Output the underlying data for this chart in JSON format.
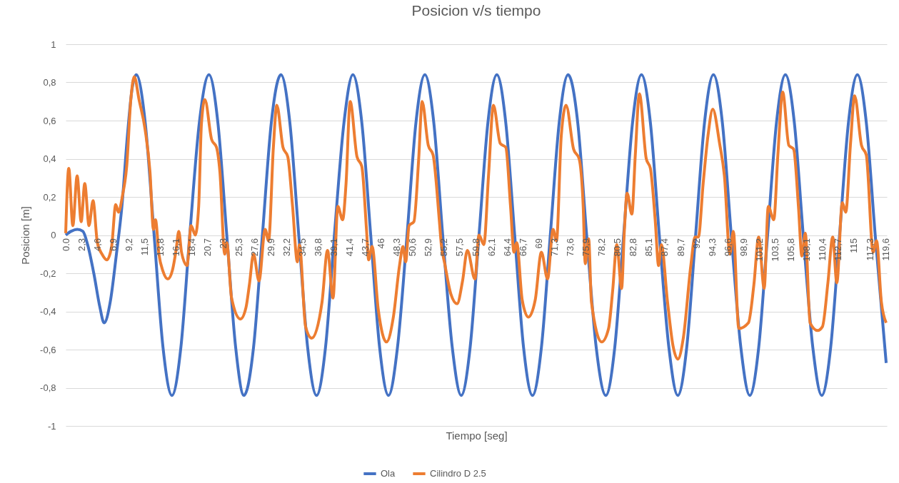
{
  "chart_data": {
    "type": "line",
    "title": "Posicion v/s tiempo",
    "xlabel": "Tiempo [seg]",
    "ylabel": "Posicion [m]",
    "xlim": [
      0,
      119.8
    ],
    "ylim": [
      -1,
      1
    ],
    "xticks": [
      {
        "value": 0,
        "label": "0.0"
      },
      {
        "value": 2.3,
        "label": "2,3"
      },
      {
        "value": 4.6,
        "label": "4,6"
      },
      {
        "value": 6.9,
        "label": "6,9"
      },
      {
        "value": 9.2,
        "label": "9,2"
      },
      {
        "value": 11.5,
        "label": "11,5"
      },
      {
        "value": 13.8,
        "label": "13,8"
      },
      {
        "value": 16.1,
        "label": "16,1"
      },
      {
        "value": 18.4,
        "label": "18,4"
      },
      {
        "value": 20.7,
        "label": "20,7"
      },
      23,
      {
        "value": 25.3,
        "label": "25,3"
      },
      {
        "value": 27.6,
        "label": "27,6"
      },
      {
        "value": 29.9,
        "label": "29,9"
      },
      {
        "value": 32.2,
        "label": "32,2"
      },
      {
        "value": 34.5,
        "label": "34,5"
      },
      {
        "value": 36.8,
        "label": "36,8"
      },
      {
        "value": 39.1,
        "label": "39,1"
      },
      {
        "value": 41.4,
        "label": "41,4"
      },
      {
        "value": 43.7,
        "label": "43,7"
      },
      46,
      {
        "value": 48.3,
        "label": "48,3"
      },
      {
        "value": 50.6,
        "label": "50,6"
      },
      {
        "value": 52.9,
        "label": "52,9"
      },
      {
        "value": 55.2,
        "label": "55,2"
      },
      {
        "value": 57.5,
        "label": "57,5"
      },
      {
        "value": 59.8,
        "label": "59,8"
      },
      {
        "value": 62.1,
        "label": "62,1"
      },
      {
        "value": 64.4,
        "label": "64,4"
      },
      {
        "value": 66.7,
        "label": "66,7"
      },
      69,
      {
        "value": 71.3,
        "label": "71,3"
      },
      {
        "value": 73.6,
        "label": "73,6"
      },
      {
        "value": 75.9,
        "label": "75,9"
      },
      {
        "value": 78.2,
        "label": "78,2"
      },
      {
        "value": 80.5,
        "label": "80,5"
      },
      {
        "value": 82.8,
        "label": "82,8"
      },
      {
        "value": 85.1,
        "label": "85,1"
      },
      {
        "value": 87.4,
        "label": "87,4"
      },
      {
        "value": 89.7,
        "label": "89,7"
      },
      92,
      {
        "value": 94.3,
        "label": "94,3"
      },
      {
        "value": 96.6,
        "label": "96,6"
      },
      {
        "value": 98.9,
        "label": "98,9"
      },
      {
        "value": 101.2,
        "label": "101,2"
      },
      {
        "value": 103.5,
        "label": "103,5"
      },
      {
        "value": 105.8,
        "label": "105,8"
      },
      {
        "value": 108.1,
        "label": "108,1"
      },
      {
        "value": 110.4,
        "label": "110,4"
      },
      {
        "value": 112.7,
        "label": "112,7"
      },
      115,
      {
        "value": 117.3,
        "label": "117,3"
      },
      {
        "value": 119.6,
        "label": "119,6"
      }
    ],
    "yticks": [
      -1,
      {
        "value": -0.8,
        "label": "-0,8"
      },
      {
        "value": -0.6,
        "label": "-0,6"
      },
      {
        "value": -0.4,
        "label": "-0,4"
      },
      {
        "value": -0.2,
        "label": "-0,2"
      },
      0,
      {
        "value": 0.2,
        "label": "0,2"
      },
      {
        "value": 0.4,
        "label": "0,4"
      },
      {
        "value": 0.6,
        "label": "0,6"
      },
      {
        "value": 0.8,
        "label": "0,8"
      },
      1
    ],
    "grid": "y",
    "legend": "bottom",
    "series": [
      {
        "name": "Ola",
        "color": "#4472c4",
        "x": [
          0,
          0.8,
          1.7,
          2.5,
          3.2,
          4.1,
          5.0,
          5.6,
          6.5,
          7.4,
          8.2,
          9.0,
          9.7,
          10.3,
          11.6,
          12.9,
          14.2,
          15.5,
          16.8,
          18.1,
          19.5,
          20.9,
          22.2,
          23.5,
          24.8,
          26.0,
          27.4,
          28.7,
          30.0,
          31.4,
          32.7,
          34.0,
          35.3,
          36.6,
          37.9,
          39.2,
          40.6,
          41.9,
          43.2,
          44.5,
          45.8,
          47.1,
          48.4,
          49.8,
          51.1,
          52.4,
          53.7,
          55.0,
          56.4,
          57.7,
          59.0,
          60.3,
          61.6,
          62.9,
          64.2,
          65.5,
          66.8,
          68.1,
          69.4,
          70.7,
          72.0,
          73.3,
          74.7,
          76.0,
          77.4,
          78.8,
          80.1,
          81.4,
          82.7,
          84.0,
          85.3,
          86.6,
          88.0,
          89.3,
          90.6,
          91.9,
          93.2,
          94.5,
          95.8,
          97.1,
          98.5,
          99.8,
          101.1,
          102.4,
          103.7,
          105.0,
          106.3,
          107.6,
          109.0,
          110.3,
          111.6,
          112.9,
          114.2,
          115.5,
          116.8,
          118.1,
          119.7
        ],
        "values": [
          0,
          0.02,
          0.03,
          0.02,
          -0.05,
          -0.2,
          -0.38,
          -0.46,
          -0.35,
          -0.1,
          0.15,
          0.52,
          0.77,
          0.84,
          0.59,
          0,
          -0.59,
          -0.84,
          -0.59,
          0,
          0.59,
          0.84,
          0.59,
          0,
          -0.59,
          -0.84,
          -0.59,
          0,
          0.59,
          0.84,
          0.59,
          0,
          -0.59,
          -0.84,
          -0.59,
          0,
          0.59,
          0.84,
          0.59,
          0,
          -0.59,
          -0.84,
          -0.59,
          0,
          0.59,
          0.84,
          0.59,
          0,
          -0.59,
          -0.84,
          -0.59,
          0,
          0.59,
          0.84,
          0.59,
          0,
          -0.59,
          -0.84,
          -0.59,
          0,
          0.59,
          0.84,
          0.59,
          0,
          -0.59,
          -0.84,
          -0.59,
          0,
          0.59,
          0.84,
          0.59,
          0,
          -0.59,
          -0.84,
          -0.59,
          0,
          0.59,
          0.84,
          0.59,
          0,
          -0.59,
          -0.84,
          -0.59,
          0,
          0.59,
          0.84,
          0.59,
          0,
          -0.59,
          -0.84,
          -0.59,
          0,
          0.59,
          0.84,
          0.59,
          0,
          -0.67
        ]
      },
      {
        "name": "Cilindro D 2.5",
        "color": "#ed7d31",
        "x": [
          0,
          0.45,
          1.04,
          1.67,
          2.26,
          2.78,
          3.4,
          3.99,
          4.62,
          5.3,
          6.0,
          6.7,
          7.3,
          7.7,
          8.3,
          8.9,
          9.5,
          10.0,
          10.7,
          11.6,
          12.3,
          12.8,
          13.1,
          13.6,
          14.2,
          14.9,
          15.6,
          16.1,
          16.5,
          16.9,
          17.7,
          18.3,
          18.9,
          19.4,
          19.8,
          20.3,
          21.3,
          22.0,
          22.5,
          23.2,
          23.5,
          24.2,
          25.5,
          26.3,
          26.8,
          27.4,
          28.2,
          29.1,
          29.6,
          30.3,
          30.8,
          31.7,
          32.4,
          33.1,
          33.8,
          34.1,
          35.0,
          35.9,
          37.4,
          38.2,
          39.0,
          39.7,
          40.4,
          40.9,
          41.5,
          42.5,
          43.2,
          43.9,
          44.2,
          44.7,
          45.6,
          46.8,
          47.8,
          48.7,
          49.2,
          49.6,
          50.1,
          50.8,
          51.5,
          52.0,
          52.9,
          53.6,
          54.5,
          54.8,
          55.3,
          56.2,
          57.1,
          57.9,
          58.6,
          59.7,
          60.3,
          61.0,
          61.7,
          62.4,
          63.4,
          64.2,
          64.9,
          65.4,
          65.8,
          66.6,
          67.5,
          68.5,
          69.4,
          70.3,
          71.1,
          71.6,
          72.3,
          73.0,
          74.1,
          74.9,
          75.5,
          75.8,
          76.3,
          76.7,
          78.2,
          79.2,
          79.8,
          80.4,
          81.1,
          81.5,
          81.9,
          82.6,
          83.1,
          83.7,
          84.7,
          85.3,
          86.0,
          86.5,
          86.9,
          87.8,
          88.6,
          89.3,
          90.1,
          91.2,
          91.8,
          92.3,
          93.0,
          93.7,
          94.4,
          95.4,
          96.1,
          96.9,
          97.4,
          98.2,
          99.6,
          100.4,
          101.1,
          101.9,
          102.5,
          103.3,
          103.9,
          104.6,
          105.5,
          106.2,
          106.9,
          107.4,
          107.9,
          108.6,
          109.7,
          110.4,
          111.2,
          111.9,
          112.5,
          113.3,
          113.8,
          114.5,
          115.1,
          116.1,
          116.8,
          117.8,
          118.3,
          119.0,
          119.7
        ],
        "values": [
          0.01,
          0.35,
          0.05,
          0.31,
          0.07,
          0.27,
          0.05,
          0.18,
          -0.04,
          -0.1,
          -0.13,
          -0.06,
          0.16,
          0.12,
          0.21,
          0.36,
          0.71,
          0.83,
          0.71,
          0.55,
          0.33,
          0.03,
          0.08,
          -0.1,
          -0.19,
          -0.23,
          -0.18,
          -0.08,
          0.02,
          -0.09,
          -0.16,
          0.05,
          0,
          0.15,
          0.58,
          0.71,
          0.5,
          0.46,
          0.33,
          -0.1,
          -0.04,
          -0.33,
          -0.44,
          -0.38,
          -0.26,
          -0.1,
          -0.24,
          0.03,
          -0.03,
          0.46,
          0.68,
          0.46,
          0.41,
          0.15,
          -0.14,
          -0.05,
          -0.48,
          -0.54,
          -0.35,
          -0.08,
          -0.33,
          0.15,
          0.08,
          0.27,
          0.7,
          0.41,
          0.36,
          0.02,
          -0.13,
          -0.06,
          -0.39,
          -0.56,
          -0.43,
          -0.16,
          -0.06,
          -0.14,
          0.05,
          0.07,
          0.4,
          0.7,
          0.47,
          0.42,
          0.08,
          -0.05,
          -0.15,
          -0.31,
          -0.36,
          -0.24,
          -0.08,
          -0.23,
          0,
          -0.05,
          0.32,
          0.68,
          0.48,
          0.46,
          0.15,
          -0.09,
          -0.04,
          -0.34,
          -0.43,
          -0.34,
          -0.09,
          -0.23,
          0.03,
          -0.03,
          0.52,
          0.68,
          0.45,
          0.4,
          0.15,
          -0.15,
          -0.02,
          -0.35,
          -0.56,
          -0.49,
          -0.29,
          -0.05,
          -0.28,
          0.02,
          0.22,
          0.11,
          0.42,
          0.74,
          0.4,
          0.35,
          0.08,
          -0.16,
          -0.05,
          -0.35,
          -0.58,
          -0.65,
          -0.54,
          -0.16,
          -0.01,
          -0.01,
          0.27,
          0.52,
          0.66,
          0.48,
          0.31,
          -0.1,
          0.02,
          -0.49,
          -0.46,
          -0.26,
          -0.01,
          -0.28,
          0.15,
          0.08,
          0.42,
          0.75,
          0.47,
          0.45,
          0.15,
          -0.11,
          0.01,
          -0.46,
          -0.5,
          -0.48,
          -0.25,
          -0.01,
          -0.25,
          0.17,
          0.12,
          0.48,
          0.73,
          0.47,
          0.42,
          -0.09,
          -0.03,
          -0.35,
          -0.46
        ]
      }
    ]
  }
}
